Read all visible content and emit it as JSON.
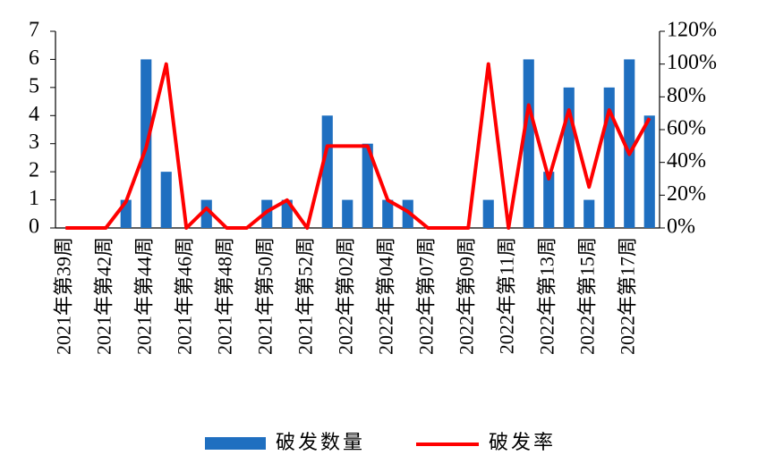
{
  "chart_data": {
    "type": "bar_line",
    "categories": [
      "2021年第39周",
      null,
      "2021年第42周",
      null,
      "2021年第44周",
      null,
      "2021年第46周",
      null,
      "2021年第48周",
      null,
      "2021年第50周",
      null,
      "2021年第52周",
      null,
      "2022年第02周",
      null,
      "2022年第04周",
      null,
      "2022年第07周",
      null,
      "2022年第09周",
      null,
      "2022年第11周",
      null,
      "2022年第13周",
      null,
      "2022年第15周",
      null,
      "2022年第17周",
      null
    ],
    "series": [
      {
        "name": "破发数量",
        "type": "bar",
        "color": "#1f6fc0",
        "values": [
          0,
          0,
          0,
          1,
          6,
          2,
          0,
          1,
          0,
          0,
          1,
          1,
          0,
          4,
          1,
          3,
          1,
          1,
          0,
          0,
          0,
          1,
          0,
          6,
          2,
          5,
          1,
          5,
          6,
          4
        ]
      },
      {
        "name": "破发率",
        "type": "line",
        "axis": "y2",
        "color": "#ff0000",
        "values": [
          0,
          0,
          0,
          16,
          49,
          100,
          0,
          12,
          0,
          0,
          10,
          17,
          0,
          50,
          50,
          50,
          17,
          10,
          0,
          0,
          0,
          100,
          0,
          75,
          30,
          72,
          25,
          72,
          45,
          67
        ]
      }
    ],
    "ylim": [
      0,
      7
    ],
    "yticks": [
      0,
      1,
      2,
      3,
      4,
      5,
      6,
      7
    ],
    "y2lim": [
      0,
      120
    ],
    "y2ticks": [
      {
        "value": 0,
        "label": "0%"
      },
      {
        "value": 20,
        "label": "20%"
      },
      {
        "value": 40,
        "label": "40%"
      },
      {
        "value": 60,
        "label": "60%"
      },
      {
        "value": 80,
        "label": "80%"
      },
      {
        "value": 100,
        "label": "100%"
      },
      {
        "value": 120,
        "label": "120%"
      }
    ],
    "legend": "bottom"
  }
}
